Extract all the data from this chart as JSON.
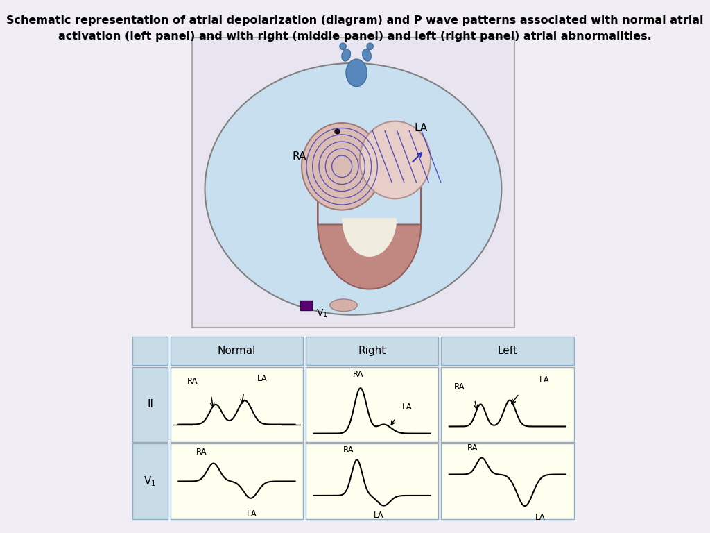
{
  "title_line1": "Schematic representation of atrial depolarization (diagram) and P wave patterns associated with normal atrial",
  "title_line2": "activation (left panel) and with right (middle panel) and left (right panel) atrial abnormalities.",
  "title_fontsize": 11.5,
  "outer_bg": "#f0eef4",
  "diagram_bg": "#cce8f4",
  "torso_fill": "#c8dff0",
  "torso_edge": "#909090",
  "heart_ra_fill": "#dbbcb4",
  "heart_la_fill": "#e8cec8",
  "wave_color": "#3030b0",
  "sinus_dot_color": "#1a0a1a",
  "v1_color": "#5a0070",
  "aorta_color": "#5888bb",
  "vent_color": "#c08880",
  "vent_inner": "#f0ece0",
  "table_border": "#8ab0c8",
  "table_header_bg": "#c8dce8",
  "cell_bg": "#fffff0",
  "label_col_bg": "#c8dce8"
}
